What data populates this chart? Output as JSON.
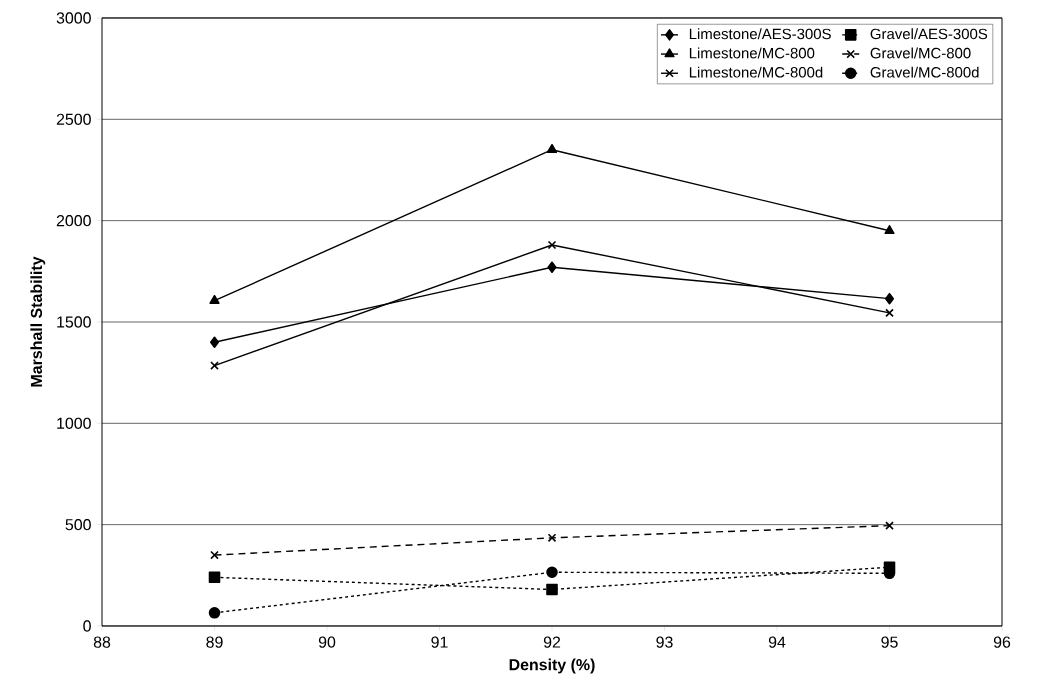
{
  "chart_data": {
    "type": "line",
    "xlabel": "Density (%)",
    "ylabel": "Marshall Stability",
    "x": [
      89,
      92,
      95
    ],
    "xlim": [
      88,
      96
    ],
    "xticks": [
      88,
      89,
      90,
      91,
      92,
      93,
      94,
      95,
      96
    ],
    "ylim": [
      0,
      3000
    ],
    "yticks": [
      0,
      500,
      1000,
      1500,
      2000,
      2500,
      3000
    ],
    "grid": "y",
    "legend": "top right",
    "series": [
      {
        "name": "Limestone/AES-300S",
        "color": "#000000",
        "values": [
          1400,
          1770,
          1615
        ],
        "marker": "diamond",
        "line_style": "solid"
      },
      {
        "name": "Limestone/MC-800",
        "color": "#000000",
        "values": [
          1605,
          2350,
          1950
        ],
        "marker": "triangle",
        "line_style": "solid"
      },
      {
        "name": "Limestone/MC-800d",
        "color": "#000000",
        "values": [
          1285,
          1880,
          1545
        ],
        "marker": "cross",
        "line_style": "solid"
      },
      {
        "name": "Gravel/AES-300S",
        "color": "#000000",
        "values": [
          240,
          180,
          290
        ],
        "marker": "square",
        "line_style": "dotted"
      },
      {
        "name": "Gravel/MC-800",
        "color": "#000000",
        "values": [
          350,
          435,
          495
        ],
        "marker": "cross",
        "line_style": "dashed"
      },
      {
        "name": "Gravel/MC-800d",
        "color": "#000000",
        "values": [
          65,
          265,
          260
        ],
        "marker": "circle",
        "line_style": "dotted"
      }
    ]
  }
}
